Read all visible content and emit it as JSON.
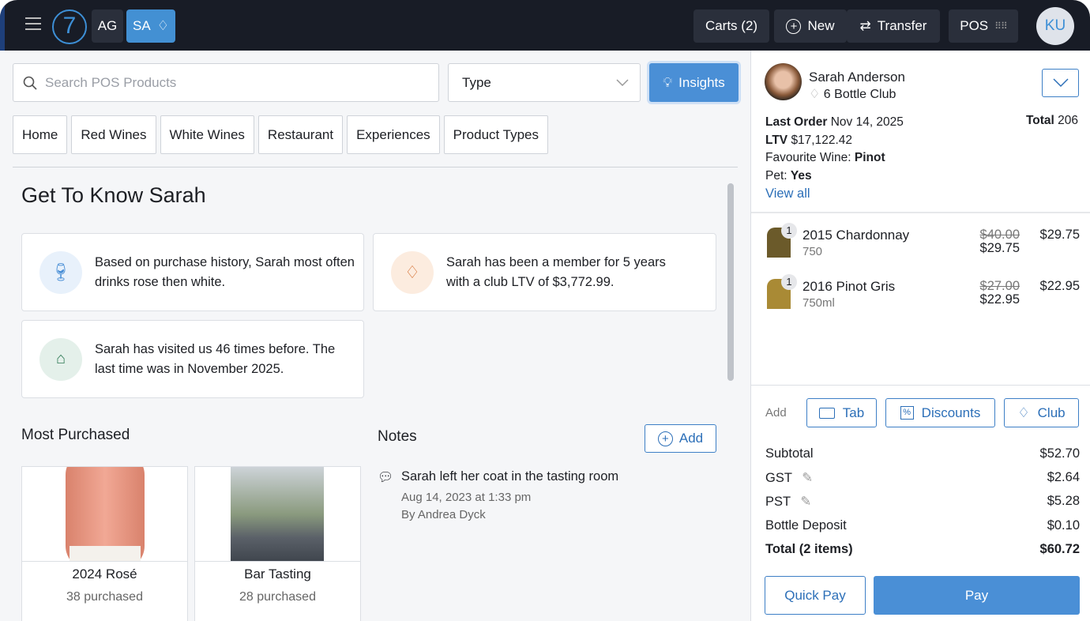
{
  "header": {
    "initials_ag": "AG",
    "initials_sa": "SA",
    "carts": "Carts (2)",
    "new": "New",
    "transfer": "Transfer",
    "pos": "POS",
    "user_initials": "KU",
    "logo": "7"
  },
  "search": {
    "placeholder": "Search POS Products",
    "type_label": "Type",
    "insights": "Insights"
  },
  "tabs": [
    "Home",
    "Red Wines",
    "White Wines",
    "Restaurant",
    "Experiences",
    "Product Types"
  ],
  "insights_section": {
    "title": "Get To Know Sarah",
    "cards": [
      {
        "icon": "wine-glass-icon",
        "text": "Based on purchase history, Sarah most often drinks rose then white."
      },
      {
        "icon": "diamond-icon",
        "text": "Sarah has been a member for 5 years with a club LTV of $3,772.99."
      },
      {
        "icon": "store-icon",
        "text": "Sarah has visited us 46 times before. The last time was in November 2025."
      }
    ]
  },
  "most_purchased": {
    "title": "Most Purchased",
    "items": [
      {
        "name": "2024 Rosé",
        "count": "38 purchased"
      },
      {
        "name": "Bar Tasting",
        "count": "28 purchased"
      }
    ]
  },
  "notes": {
    "title": "Notes",
    "add": "Add",
    "items": [
      {
        "text": "Sarah left her coat in the tasting room",
        "date": "Aug 14, 2023 at 1:33 pm",
        "author": "By Andrea Dyck"
      }
    ]
  },
  "customer": {
    "name": "Sarah Anderson",
    "club": "6 Bottle Club",
    "last_order_label": "Last Order",
    "last_order": "Nov 14, 2025",
    "total_label": "Total",
    "total": "206",
    "ltv_label": "LTV",
    "ltv": "$17,122.42",
    "fav_label": "Favourite Wine:",
    "fav": "Pinot",
    "pet_label": "Pet:",
    "pet": "Yes",
    "view_all": "View all"
  },
  "cart": {
    "items": [
      {
        "qty": "1",
        "name": "2015 Chardonnay",
        "size": "750",
        "orig": "$40.00",
        "unit": "$29.75",
        "total": "$29.75",
        "color": "#6b5a2a"
      },
      {
        "qty": "1",
        "name": "2016 Pinot Gris",
        "size": "750ml",
        "orig": "$27.00",
        "unit": "$22.95",
        "total": "$22.95",
        "color": "#a98a35"
      }
    ],
    "add_label": "Add",
    "tab": "Tab",
    "discounts": "Discounts",
    "club": "Club",
    "subtotal_label": "Subtotal",
    "subtotal": "$52.70",
    "gst_label": "GST",
    "gst": "$2.64",
    "pst_label": "PST",
    "pst": "$5.28",
    "deposit_label": "Bottle Deposit",
    "deposit": "$0.10",
    "total_label": "Total (2 items)",
    "total": "$60.72",
    "quick_pay": "Quick Pay",
    "pay": "Pay"
  },
  "colors": {
    "accent": "#4a8fd6",
    "topbar": "#181c26",
    "link": "#2c6fb8"
  }
}
